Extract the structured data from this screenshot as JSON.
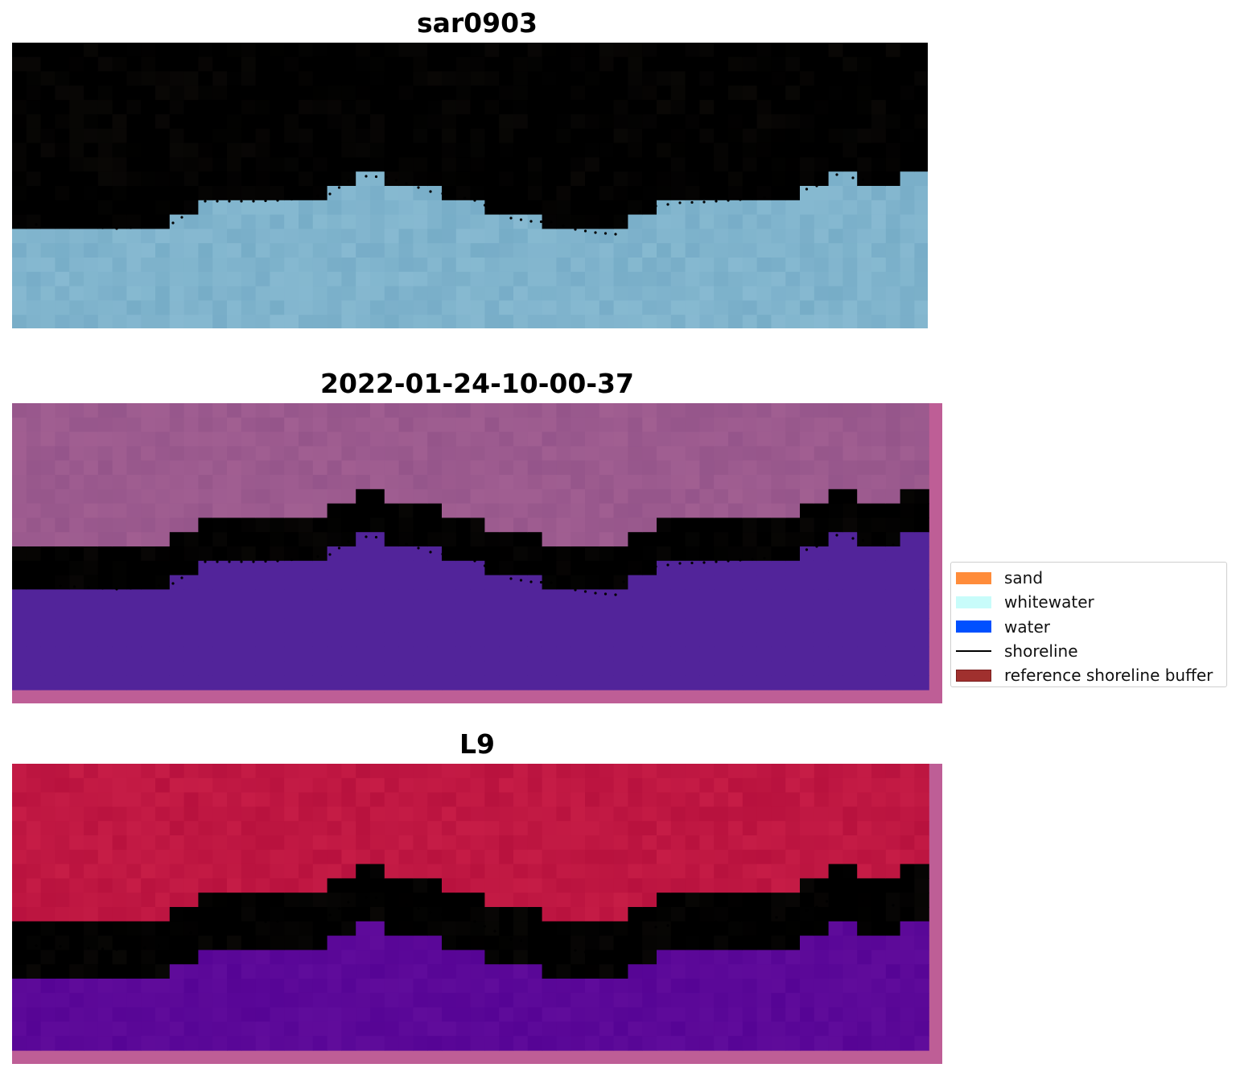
{
  "panels": [
    {
      "id": "sar",
      "title": "sar0903"
    },
    {
      "id": "classified",
      "title": "2022-01-24-10-00-37"
    },
    {
      "id": "l9",
      "title": "L9"
    }
  ],
  "legend": {
    "items": [
      {
        "label": "sand",
        "color": "#ff8c3a",
        "kind": "patch"
      },
      {
        "label": "whitewater",
        "color": "#c8fcfa",
        "kind": "patch"
      },
      {
        "label": "water",
        "color": "#0050ff",
        "kind": "patch"
      },
      {
        "label": "shoreline",
        "color": "#000000",
        "kind": "line"
      },
      {
        "label": "reference shoreline buffer",
        "color": "#a0302e",
        "kind": "patch"
      }
    ]
  },
  "colors": {
    "sar_land": "#a2dcd8",
    "sar_sea": "#7fb3cc",
    "class_land": "#9b5a8e",
    "class_water": "#52249a",
    "class_buffer": "#be5e96",
    "l9_land": "#bf1742",
    "l9_water": "#5b0898",
    "l9_buffer": "#be5e96"
  },
  "shoreline": {
    "style": "dotted",
    "color": "#000000"
  }
}
